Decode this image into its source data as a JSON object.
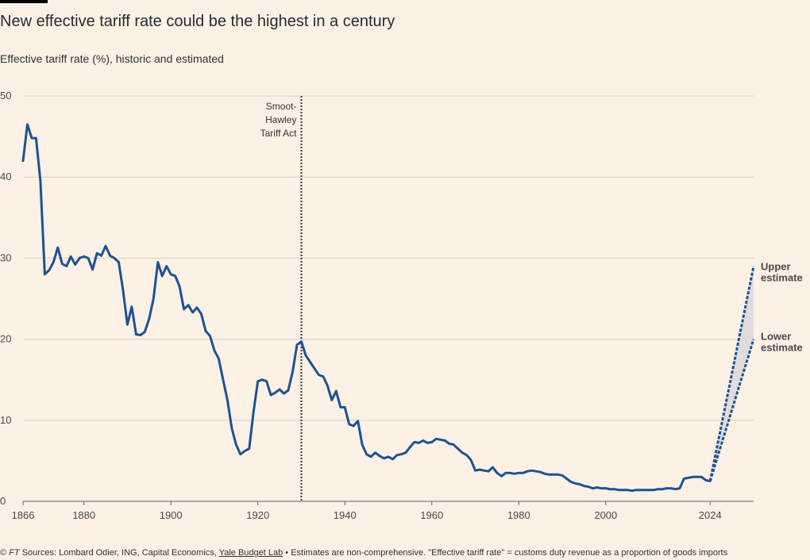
{
  "title": "New effective tariff rate could be the highest in a century",
  "subtitle": "Effective tariff rate (%), historic and estimated",
  "footer": {
    "copyright": "© ",
    "brand": "FT",
    "sources_prefix": " Sources: Lombard Odier, ING, Capital Economics, ",
    "link_text": "Yale Budget Lab",
    "note": " • Estimates are non-comprehensive. \"Effective tariff rate\" = customs duty revenue as a proportion of goods imports"
  },
  "colors": {
    "background": "#fdf1e6",
    "line": "#1d5390",
    "grid": "#d7cdc4",
    "band": "#dbd8d8"
  },
  "chart_data": {
    "type": "line",
    "xlim": [
      1866,
      2034
    ],
    "ylim": [
      0,
      50
    ],
    "x_ticks": [
      1866,
      1880,
      1900,
      1920,
      1940,
      1960,
      1980,
      2000,
      2024
    ],
    "y_ticks": [
      0,
      10,
      20,
      30,
      40,
      50
    ],
    "grid": true,
    "series": [
      {
        "style": "solid",
        "x": [
          1866,
          1867,
          1868,
          1869,
          1870,
          1871,
          1872,
          1873,
          1874,
          1875,
          1876,
          1877,
          1878,
          1879,
          1880,
          1881,
          1882,
          1883,
          1884,
          1885,
          1886,
          1887,
          1888,
          1889,
          1890,
          1891,
          1892,
          1893,
          1894,
          1895,
          1896,
          1897,
          1898,
          1899,
          1900,
          1901,
          1902,
          1903,
          1904,
          1905,
          1906,
          1907,
          1908,
          1909,
          1910,
          1911,
          1912,
          1913,
          1914,
          1915,
          1916,
          1917,
          1918,
          1919,
          1920,
          1921,
          1922,
          1923,
          1924,
          1925,
          1926,
          1927,
          1928,
          1929,
          1930,
          1931,
          1932,
          1933,
          1934,
          1935,
          1936,
          1937,
          1938,
          1939,
          1940,
          1941,
          1942,
          1943,
          1944,
          1945,
          1946,
          1947,
          1948,
          1949,
          1950,
          1951,
          1952,
          1953,
          1954,
          1955,
          1956,
          1957,
          1958,
          1959,
          1960,
          1961,
          1962,
          1963,
          1964,
          1965,
          1966,
          1967,
          1968,
          1969,
          1970,
          1971,
          1972,
          1973,
          1974,
          1975,
          1976,
          1977,
          1978,
          1979,
          1980,
          1981,
          1982,
          1983,
          1984,
          1985,
          1986,
          1987,
          1988,
          1989,
          1990,
          1991,
          1992,
          1993,
          1994,
          1995,
          1996,
          1997,
          1998,
          1999,
          2000,
          2001,
          2002,
          2003,
          2004,
          2005,
          2006,
          2007,
          2008,
          2009,
          2010,
          2011,
          2012,
          2013,
          2014,
          2015,
          2016,
          2017,
          2018,
          2019,
          2020,
          2021,
          2022,
          2023,
          2024
        ],
        "y": [
          42.0,
          46.5,
          44.8,
          44.8,
          39.5,
          28.0,
          28.5,
          29.5,
          31.3,
          29.3,
          29.0,
          30.2,
          29.2,
          30.0,
          30.2,
          30.0,
          28.6,
          30.6,
          30.3,
          31.5,
          30.3,
          30.0,
          29.5,
          26.0,
          21.8,
          24.0,
          20.6,
          20.5,
          20.9,
          22.5,
          25.0,
          29.5,
          27.8,
          29.0,
          28.0,
          27.8,
          26.5,
          23.7,
          24.2,
          23.3,
          23.9,
          23.1,
          21.0,
          20.4,
          18.6,
          17.6,
          15.0,
          12.5,
          9.0,
          7.0,
          5.8,
          6.2,
          6.5,
          11.0,
          14.8,
          15.0,
          14.8,
          13.1,
          13.4,
          13.8,
          13.3,
          13.7,
          16.0,
          19.3,
          19.7,
          18.0,
          17.2,
          16.4,
          15.6,
          15.4,
          14.3,
          12.5,
          13.6,
          11.6,
          11.6,
          9.5,
          9.3,
          9.9,
          7.0,
          5.8,
          5.5,
          6.0,
          5.6,
          5.3,
          5.5,
          5.2,
          5.7,
          5.8,
          6.0,
          6.7,
          7.3,
          7.2,
          7.5,
          7.2,
          7.3,
          7.7,
          7.6,
          7.5,
          7.1,
          7.0,
          6.5,
          6.0,
          5.7,
          5.1,
          3.8,
          3.9,
          3.8,
          3.7,
          4.2,
          3.5,
          3.1,
          3.5,
          3.5,
          3.4,
          3.5,
          3.5,
          3.7,
          3.8,
          3.7,
          3.6,
          3.4,
          3.3,
          3.3,
          3.3,
          3.2,
          2.8,
          2.4,
          2.2,
          2.1,
          1.9,
          1.8,
          1.6,
          1.7,
          1.6,
          1.6,
          1.5,
          1.5,
          1.4,
          1.4,
          1.4,
          1.3,
          1.4,
          1.4,
          1.4,
          1.4,
          1.4,
          1.5,
          1.5,
          1.6,
          1.6,
          1.5,
          1.6,
          2.8,
          2.9,
          3.0,
          3.0,
          3.0,
          2.6,
          2.5
        ]
      },
      {
        "name": "Upper estimate",
        "style": "dashed",
        "x": [
          2024,
          2034
        ],
        "y": [
          2.5,
          29.0
        ]
      },
      {
        "name": "Lower estimate",
        "style": "dashed",
        "x": [
          2024,
          2034
        ],
        "y": [
          2.5,
          20.0
        ]
      }
    ],
    "annotations": [
      {
        "x": 1930,
        "lines": [
          "Smoot-",
          "Hawley",
          "Tariff Act"
        ]
      }
    ]
  }
}
